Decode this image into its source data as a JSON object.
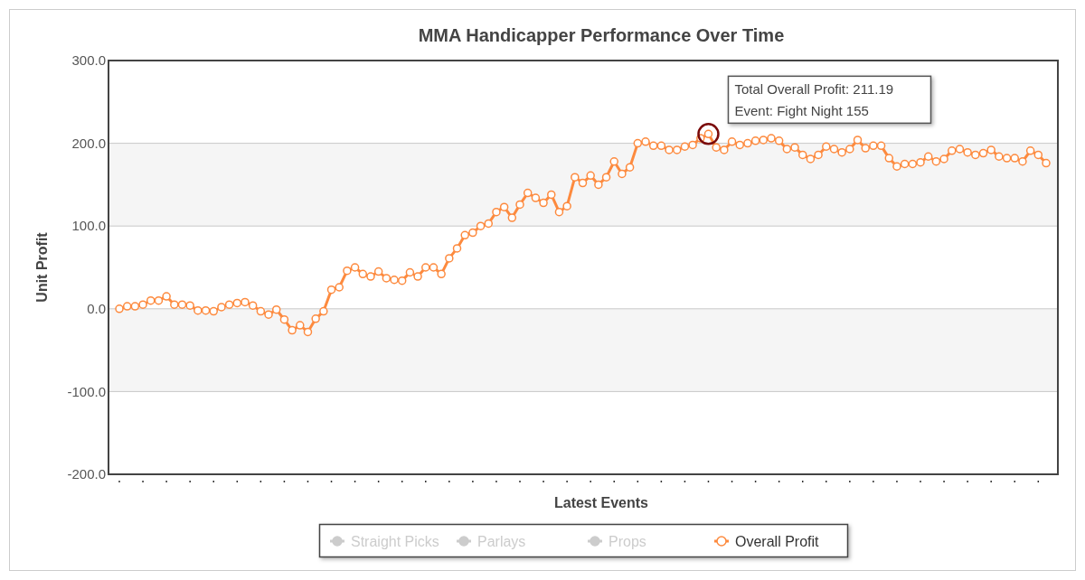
{
  "chart_data": {
    "type": "line",
    "title": "MMA Handicapper Performance Over Time",
    "xlabel": "Latest Events",
    "ylabel": "Unit Profit",
    "categories": [
      null,
      null,
      null,
      null,
      null,
      null,
      null,
      null,
      null,
      null,
      null,
      null,
      null,
      null,
      null,
      null,
      null,
      null,
      null,
      null,
      null,
      null,
      null,
      null,
      null,
      null,
      null,
      null,
      null,
      null,
      null,
      null,
      null,
      null,
      null,
      null,
      null,
      null,
      null,
      null,
      null,
      null,
      null,
      null,
      null,
      null,
      null,
      null,
      null,
      null,
      null,
      null,
      null,
      null,
      null,
      null,
      null,
      null,
      null,
      null,
      null,
      null,
      null,
      null,
      null,
      null,
      null,
      null,
      null,
      null,
      null,
      null,
      null,
      null,
      null,
      null,
      null,
      null,
      null,
      null,
      null,
      null,
      null,
      null,
      null,
      null,
      null,
      null,
      null,
      null,
      null,
      null,
      null,
      null,
      null,
      null,
      null,
      null,
      null,
      null,
      null,
      null,
      null,
      null,
      null,
      null,
      null,
      null,
      null,
      null,
      null,
      null,
      null,
      null,
      null,
      null,
      null,
      null,
      null
    ],
    "series": [
      {
        "name": "Straight Picks",
        "color": "#cccccc",
        "values": [
          null,
          null,
          null,
          null,
          null,
          null,
          null,
          null,
          null,
          null,
          null,
          null,
          null,
          null,
          null,
          null,
          null,
          null,
          null,
          null,
          null,
          null,
          null,
          null,
          null,
          null,
          null,
          null,
          null,
          null,
          null,
          null,
          null,
          null,
          null,
          null,
          null,
          null,
          null,
          null,
          null,
          null,
          null,
          null,
          null,
          null,
          null,
          null,
          null,
          null,
          null,
          null,
          null,
          null,
          null,
          null,
          null,
          null,
          null,
          null,
          null,
          null,
          null,
          null,
          null,
          null,
          null,
          null,
          null,
          null,
          null,
          null,
          null,
          null,
          null,
          null,
          null,
          null,
          null,
          null,
          null,
          null,
          null,
          null,
          null,
          null,
          null,
          null,
          null,
          null,
          null,
          null,
          null,
          null,
          null,
          null,
          null,
          null,
          null,
          null,
          null,
          null,
          null,
          null,
          null,
          null,
          null,
          null,
          null,
          null,
          null,
          null,
          null,
          null,
          null,
          null,
          null,
          null,
          null
        ]
      },
      {
        "name": "Parlays",
        "color": "#cccccc",
        "values": [
          null,
          null,
          null,
          null,
          null,
          null,
          null,
          null,
          null,
          null,
          null,
          null,
          null,
          null,
          null,
          null,
          null,
          null,
          null,
          null,
          null,
          null,
          null,
          null,
          null,
          null,
          null,
          null,
          null,
          null,
          null,
          null,
          null,
          null,
          null,
          null,
          null,
          null,
          null,
          null,
          null,
          null,
          null,
          null,
          null,
          null,
          null,
          null,
          null,
          null,
          null,
          null,
          null,
          null,
          null,
          null,
          null,
          null,
          null,
          null,
          null,
          null,
          null,
          null,
          null,
          null,
          null,
          null,
          null,
          null,
          null,
          null,
          null,
          null,
          null,
          null,
          null,
          null,
          null,
          null,
          null,
          null,
          null,
          null,
          null,
          null,
          null,
          null,
          null,
          null,
          null,
          null,
          null,
          null,
          null,
          null,
          null,
          null,
          null,
          null,
          null,
          null,
          null,
          null,
          null,
          null,
          null,
          null,
          null,
          null,
          null,
          null,
          null,
          null,
          null,
          null,
          null,
          null,
          null
        ]
      },
      {
        "name": "Props",
        "color": "#cccccc",
        "values": [
          null,
          null,
          null,
          null,
          null,
          null,
          null,
          null,
          null,
          null,
          null,
          null,
          null,
          null,
          null,
          null,
          null,
          null,
          null,
          null,
          null,
          null,
          null,
          null,
          null,
          null,
          null,
          null,
          null,
          null,
          null,
          null,
          null,
          null,
          null,
          null,
          null,
          null,
          null,
          null,
          null,
          null,
          null,
          null,
          null,
          null,
          null,
          null,
          null,
          null,
          null,
          null,
          null,
          null,
          null,
          null,
          null,
          null,
          null,
          null,
          null,
          null,
          null,
          null,
          null,
          null,
          null,
          null,
          null,
          null,
          null,
          null,
          null,
          null,
          null,
          null,
          null,
          null,
          null,
          null,
          null,
          null,
          null,
          null,
          null,
          null,
          null,
          null,
          null,
          null,
          null,
          null,
          null,
          null,
          null,
          null,
          null,
          null,
          null,
          null,
          null,
          null,
          null,
          null,
          null,
          null,
          null,
          null,
          null,
          null,
          null,
          null,
          null,
          null,
          null,
          null,
          null,
          null,
          null
        ]
      },
      {
        "name": "Overall Profit",
        "color": "#fd8a3e",
        "values": [
          0,
          3,
          3,
          5,
          10,
          10,
          15,
          5,
          5,
          4,
          -2,
          -2,
          -3,
          2,
          5,
          7,
          8,
          4,
          -3,
          -7,
          -1,
          -13,
          -26,
          -20,
          -28,
          -12,
          -3,
          23,
          26,
          46,
          50,
          42,
          39,
          45,
          37,
          35,
          34,
          44,
          39,
          50,
          50,
          42,
          61,
          73,
          89,
          92,
          100,
          103,
          117,
          123,
          110,
          126,
          140,
          134,
          128,
          138,
          117,
          124,
          159,
          152,
          161,
          150,
          159,
          178,
          163,
          171,
          200,
          202,
          197,
          197,
          192,
          192,
          196,
          198,
          206,
          211.19,
          195,
          192,
          202,
          198,
          200,
          203,
          204,
          206,
          203,
          193,
          195,
          186,
          181,
          186,
          196,
          193,
          189,
          193,
          204,
          194,
          197,
          197,
          182,
          172,
          175,
          175,
          177,
          184,
          178,
          181,
          191,
          193,
          189,
          186,
          188,
          192,
          184,
          182,
          182,
          178,
          191,
          186,
          176
        ]
      }
    ],
    "ylim": [
      -200,
      300
    ],
    "yticks": [
      {
        "value": -200,
        "label": "-200.0"
      },
      {
        "value": -100,
        "label": "-100.0"
      },
      {
        "value": 0,
        "label": "0.0"
      },
      {
        "value": 100,
        "label": "100.0"
      },
      {
        "value": 200,
        "label": "200.0"
      },
      {
        "value": 300,
        "label": "300.0"
      }
    ],
    "grid": "y",
    "legend": "bottom",
    "marker": "circle",
    "line_style": "solid",
    "annotations": [
      "Total Overall Profit: 211.19",
      "Event: Fight Night 155"
    ]
  }
}
